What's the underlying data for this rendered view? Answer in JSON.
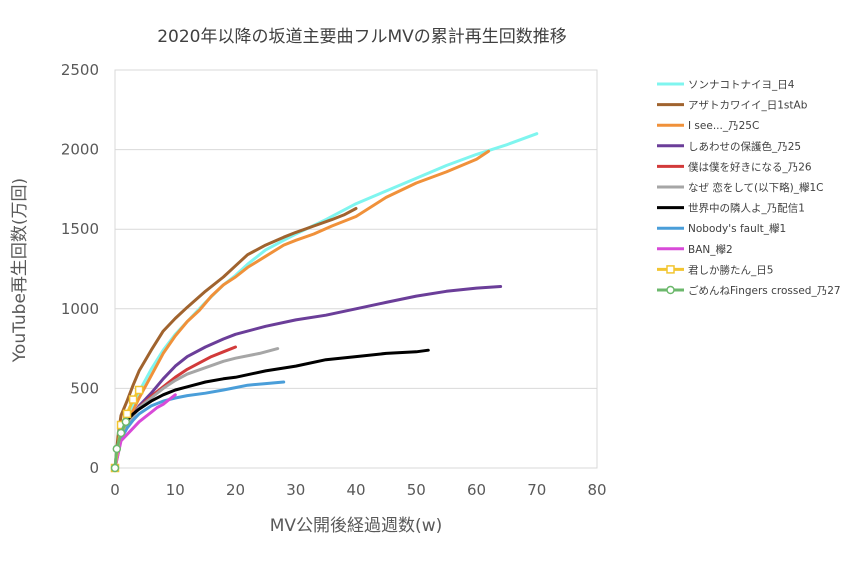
{
  "chart_data": {
    "type": "line",
    "title": "2020年以降の坂道主要曲フルMVの累計再生回数推移",
    "xlabel": "MV公開後経過週数(w)",
    "ylabel": "YouTube再生回数(万回)",
    "xlim": [
      0,
      80
    ],
    "ylim": [
      0,
      2500
    ],
    "xticks": [
      "0",
      "10",
      "20",
      "30",
      "40",
      "50",
      "60",
      "70",
      "80"
    ],
    "yticks": [
      "0",
      "500",
      "1000",
      "1500",
      "2000",
      "2500"
    ],
    "grid": "horizontal",
    "legend_position": "right",
    "series": [
      {
        "name": "ソンナコトナイヨ_日4",
        "color": "#7ff5ef",
        "marker": "none",
        "x": [
          0,
          1,
          2,
          3,
          4,
          6,
          8,
          10,
          12,
          15,
          18,
          20,
          22,
          25,
          28,
          30,
          35,
          40,
          45,
          50,
          55,
          60,
          65,
          70
        ],
        "y": [
          0,
          250,
          330,
          400,
          480,
          620,
          740,
          840,
          920,
          1040,
          1150,
          1210,
          1280,
          1370,
          1430,
          1470,
          1560,
          1660,
          1740,
          1820,
          1900,
          1970,
          2030,
          2100
        ]
      },
      {
        "name": "アザトカワイイ_日1stAb",
        "color": "#a0632e",
        "marker": "none",
        "x": [
          0,
          0.5,
          1,
          2,
          3,
          4,
          6,
          8,
          10,
          12,
          15,
          18,
          20,
          22,
          25,
          28,
          30,
          33,
          36,
          38,
          40
        ],
        "y": [
          0,
          200,
          330,
          420,
          520,
          610,
          740,
          860,
          940,
          1010,
          1110,
          1200,
          1270,
          1340,
          1400,
          1450,
          1480,
          1520,
          1560,
          1590,
          1630
        ]
      },
      {
        "name": "I see..._乃25C",
        "color": "#f0913a",
        "marker": "none",
        "x": [
          0,
          1,
          2,
          3,
          4,
          6,
          8,
          10,
          12,
          14,
          16,
          18,
          20,
          22,
          25,
          28,
          30,
          33,
          36,
          40,
          45,
          50,
          55,
          60,
          62
        ],
        "y": [
          0,
          200,
          280,
          360,
          440,
          580,
          720,
          830,
          920,
          990,
          1080,
          1150,
          1200,
          1260,
          1330,
          1400,
          1430,
          1470,
          1520,
          1580,
          1700,
          1790,
          1860,
          1940,
          1990
        ]
      },
      {
        "name": "しあわせの保護色_乃25",
        "color": "#6b3e99",
        "marker": "none",
        "x": [
          0,
          1,
          2,
          3,
          4,
          6,
          8,
          10,
          12,
          15,
          18,
          20,
          25,
          30,
          35,
          40,
          45,
          50,
          55,
          60,
          64
        ],
        "y": [
          0,
          200,
          270,
          330,
          390,
          470,
          560,
          640,
          700,
          760,
          810,
          840,
          890,
          930,
          960,
          1000,
          1040,
          1080,
          1110,
          1130,
          1140
        ]
      },
      {
        "name": "僕は僕を好きになる_乃26",
        "color": "#d23a3a",
        "marker": "none",
        "x": [
          0,
          1,
          2,
          4,
          6,
          8,
          10,
          12,
          14,
          16,
          18,
          20
        ],
        "y": [
          0,
          200,
          280,
          380,
          450,
          510,
          570,
          620,
          660,
          700,
          730,
          760
        ]
      },
      {
        "name": "なぜ 恋をして(以下略)_欅1C",
        "color": "#a6a6a6",
        "marker": "none",
        "x": [
          0,
          1,
          2,
          4,
          6,
          8,
          10,
          12,
          15,
          18,
          20,
          24,
          27
        ],
        "y": [
          0,
          190,
          270,
          380,
          440,
          500,
          550,
          590,
          630,
          670,
          690,
          720,
          750
        ]
      },
      {
        "name": "世界中の隣人よ_乃配信1",
        "color": "#000000",
        "marker": "none",
        "x": [
          0,
          1,
          2,
          3,
          4,
          6,
          8,
          10,
          12,
          15,
          18,
          20,
          25,
          30,
          35,
          40,
          45,
          50,
          52
        ],
        "y": [
          0,
          230,
          300,
          340,
          370,
          420,
          460,
          490,
          510,
          540,
          560,
          570,
          610,
          640,
          680,
          700,
          720,
          730,
          740
        ]
      },
      {
        "name": "Nobody's fault_欅1",
        "color": "#4a9ed9",
        "marker": "none",
        "x": [
          0,
          1,
          2,
          3,
          4,
          6,
          8,
          10,
          12,
          15,
          18,
          20,
          22,
          25,
          28
        ],
        "y": [
          0,
          180,
          250,
          300,
          340,
          390,
          420,
          440,
          455,
          470,
          490,
          505,
          520,
          530,
          540
        ]
      },
      {
        "name": "BAN_欅2",
        "color": "#d84ad8",
        "marker": "none",
        "x": [
          0,
          1,
          2,
          3,
          4,
          5,
          6,
          7,
          8,
          9,
          10
        ],
        "y": [
          0,
          170,
          210,
          250,
          290,
          320,
          350,
          380,
          400,
          430,
          460
        ]
      },
      {
        "name": "君しか勝たん_日5",
        "color": "#f2c531",
        "marker": "square",
        "x": [
          0,
          1,
          2,
          3,
          4
        ],
        "y": [
          0,
          270,
          340,
          430,
          490
        ]
      },
      {
        "name": "ごめんねFingers crossed_乃27",
        "color": "#6cb86c",
        "marker": "circle",
        "x": [
          0,
          0.3,
          1,
          1.8
        ],
        "y": [
          0,
          120,
          220,
          290
        ]
      }
    ]
  }
}
